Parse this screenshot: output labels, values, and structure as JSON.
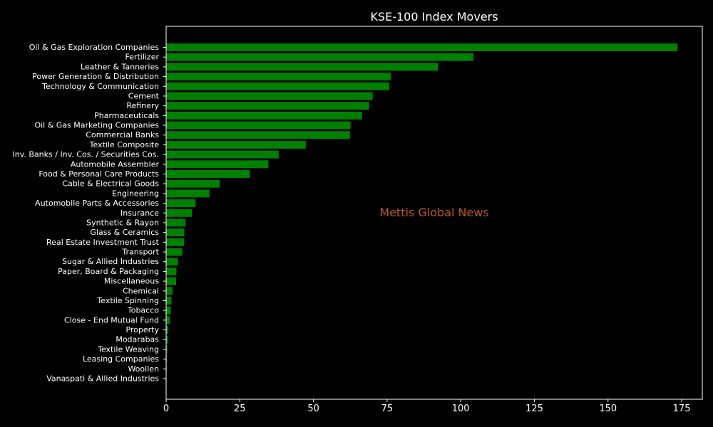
{
  "chart_data": {
    "type": "bar",
    "orientation": "horizontal",
    "title": "KSE-100 Index Movers",
    "xlabel": "",
    "ylabel": "",
    "watermark": "Mettis Global News",
    "xlim": [
      0,
      182
    ],
    "x_ticks": [
      0,
      25,
      50,
      75,
      100,
      125,
      150,
      175
    ],
    "grid": false,
    "colors": {
      "background": "#000000",
      "bar": "#008000",
      "text": "#ffffff",
      "axis": "#ffffff",
      "watermark": "#b85c1c"
    },
    "categories": [
      "Oil & Gas Exploration Companies",
      "Fertilizer",
      "Leather & Tanneries",
      "Power Generation & Distribution",
      "Technology & Communication",
      "Cement",
      "Refinery",
      "Pharmaceuticals",
      "Oil & Gas Marketing Companies",
      "Commercial Banks",
      "Textile Composite",
      "Inv. Banks / Inv. Cos. / Securities Cos.",
      "Automobile Assembler",
      "Food & Personal Care Products",
      "Cable & Electrical Goods",
      "Engineering",
      "Automobile Parts & Accessories",
      "Insurance",
      "Synthetic & Rayon",
      "Glass & Ceramics",
      "Real Estate Investment Trust",
      "Transport",
      "Sugar & Allied Industries",
      "Paper, Board & Packaging",
      "Miscellaneous",
      "Chemical",
      "Textile Spinning",
      "Tobacco",
      "Close - End Mutual Fund",
      "Property",
      "Modarabas",
      "Textile Weaving",
      "Leasing Companies",
      "Woollen",
      "Vanaspati & Allied Industries"
    ],
    "values": [
      173.6,
      104.3,
      92.3,
      76.3,
      75.7,
      70.1,
      68.9,
      66.5,
      62.6,
      62.4,
      47.4,
      38.2,
      34.7,
      28.4,
      18.2,
      14.7,
      10.0,
      8.8,
      6.6,
      6.2,
      6.1,
      5.5,
      4.0,
      3.5,
      3.4,
      2.2,
      1.8,
      1.6,
      1.3,
      0.7,
      0.6,
      0.4,
      0.3,
      0.2,
      0.1
    ]
  }
}
